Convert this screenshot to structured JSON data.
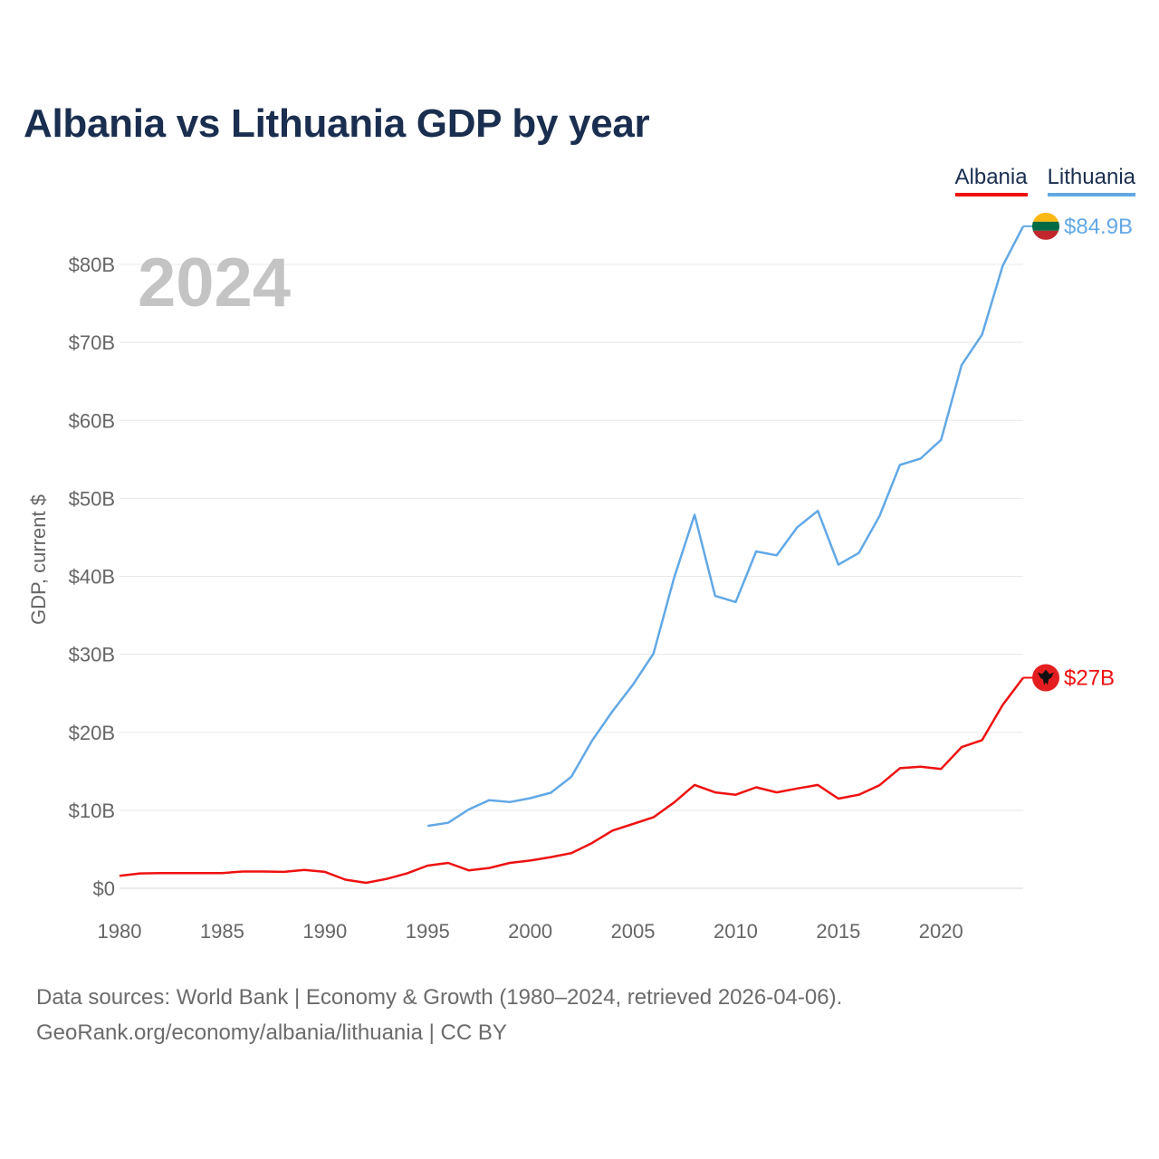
{
  "title": "Albania vs Lithuania GDP by year",
  "colors": {
    "albania": "#ee1111",
    "lithuania": "#62a8e5",
    "title": "#1a2e4f"
  },
  "source": {
    "line1": "Data sources: World Bank | Economy & Growth (1980–2024, retrieved 2026-04-06).",
    "line2": "GeoRank.org/economy/albania/lithuania | CC BY"
  },
  "chart_data": {
    "type": "line",
    "title": "Albania vs Lithuania GDP by year",
    "xlabel": "",
    "ylabel": "GDP, current $",
    "xlim": [
      1980,
      2024
    ],
    "ylim": [
      0,
      85
    ],
    "y_unit": "billions USD",
    "year_watermark": "2024",
    "x_ticks": [
      1980,
      1985,
      1990,
      1995,
      2000,
      2005,
      2010,
      2015,
      2020
    ],
    "x_tick_labels": [
      "1980",
      "1985",
      "1990",
      "1995",
      "2000",
      "2005",
      "2010",
      "2015",
      "2020"
    ],
    "y_ticks": [
      0,
      10,
      20,
      30,
      40,
      50,
      60,
      70,
      80
    ],
    "y_tick_labels": [
      "$0",
      "$10B",
      "$20B",
      "$30B",
      "$40B",
      "$50B",
      "$60B",
      "$70B",
      "$80B"
    ],
    "legend": "top-right",
    "grid": true,
    "series": [
      {
        "name": "Albania",
        "color": "#ee1111",
        "end_label": "$27B",
        "flag": "albania",
        "x": [
          1980,
          1981,
          1982,
          1983,
          1984,
          1985,
          1986,
          1987,
          1988,
          1989,
          1990,
          1991,
          1992,
          1993,
          1994,
          1995,
          1996,
          1997,
          1998,
          1999,
          2000,
          2001,
          2002,
          2003,
          2004,
          2005,
          2006,
          2007,
          2008,
          2009,
          2010,
          2011,
          2012,
          2013,
          2014,
          2015,
          2016,
          2017,
          2018,
          2019,
          2020,
          2021,
          2022,
          2023,
          2024
        ],
        "values": [
          1.6,
          1.9,
          1.95,
          1.95,
          1.95,
          1.95,
          2.15,
          2.15,
          2.1,
          2.35,
          2.1,
          1.1,
          0.7,
          1.2,
          1.9,
          2.9,
          3.25,
          2.3,
          2.6,
          3.25,
          3.55,
          4.0,
          4.5,
          5.8,
          7.4,
          8.25,
          9.1,
          11.0,
          13.25,
          12.3,
          12.0,
          12.95,
          12.3,
          12.8,
          13.25,
          11.5,
          12.0,
          13.2,
          15.4,
          15.6,
          15.3,
          18.1,
          19.0,
          23.5,
          27.0
        ]
      },
      {
        "name": "Lithuania",
        "color": "#62a8e5",
        "end_label": "$84.9B",
        "flag": "lithuania",
        "x": [
          1995,
          1996,
          1997,
          1998,
          1999,
          2000,
          2001,
          2002,
          2003,
          2004,
          2005,
          2006,
          2007,
          2008,
          2009,
          2010,
          2011,
          2012,
          2013,
          2014,
          2015,
          2016,
          2017,
          2018,
          2019,
          2020,
          2021,
          2022,
          2023,
          2024
        ],
        "values": [
          8.0,
          8.4,
          10.1,
          11.3,
          11.05,
          11.55,
          12.25,
          14.3,
          18.9,
          22.7,
          26.1,
          30.1,
          39.8,
          47.9,
          37.5,
          36.7,
          43.2,
          42.7,
          46.3,
          48.4,
          41.5,
          43.0,
          47.7,
          54.3,
          55.1,
          57.5,
          67.1,
          71.0,
          79.8,
          84.9
        ]
      }
    ]
  }
}
